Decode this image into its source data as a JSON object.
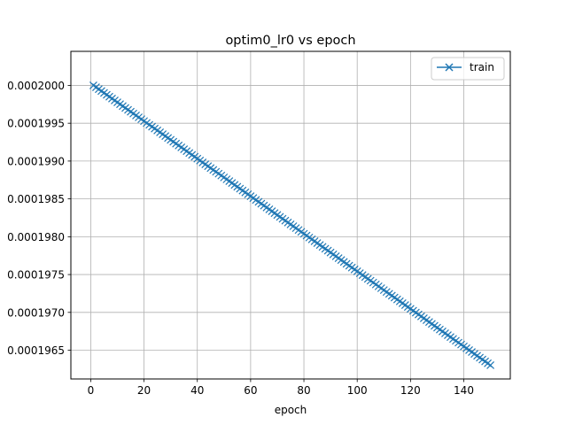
{
  "chart_data": {
    "type": "line",
    "title": "optim0_lr0 vs epoch",
    "xlabel": "epoch",
    "ylabel": "",
    "xlim": [
      -7.45,
      157.45
    ],
    "ylim": [
      0.00019612,
      0.00020045
    ],
    "x_ticks": [
      0,
      20,
      40,
      60,
      80,
      100,
      120,
      140
    ],
    "x_tick_labels": [
      "0",
      "20",
      "40",
      "60",
      "80",
      "100",
      "120",
      "140"
    ],
    "y_ticks": [
      0.0001965,
      0.000197,
      0.0001975,
      0.000198,
      0.0001985,
      0.000199,
      0.0001995,
      0.0002
    ],
    "y_tick_labels": [
      "0.0001965",
      "0.0001970",
      "0.0001975",
      "0.0001980",
      "0.0001985",
      "0.0001990",
      "0.0001995",
      "0.0002000"
    ],
    "grid": true,
    "legend_position": "upper right",
    "series": [
      {
        "name": "train",
        "color": "#1f77b4",
        "marker": "x",
        "x_start": 1,
        "x_end": 150,
        "x_step": 1,
        "y_start": 0.0002,
        "y_end": 0.000196302
      }
    ]
  }
}
